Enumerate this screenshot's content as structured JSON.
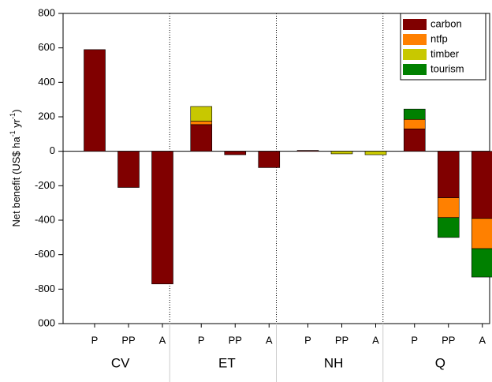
{
  "chart_data": {
    "type": "stacked-bar",
    "ylabel": [
      "Net benefit (US$ ha",
      "-1",
      " yr",
      "-1",
      ")"
    ],
    "categories": [
      "P",
      "PP",
      "A",
      "P",
      "PP",
      "A",
      "P",
      "PP",
      "A",
      "P",
      "PP",
      "A"
    ],
    "groups": [
      "CV",
      "ET",
      "NH",
      "Q"
    ],
    "series": [
      {
        "name": "carbon",
        "color": "#800000",
        "values": [
          590,
          -210,
          -770,
          155,
          -20,
          -95,
          5,
          0,
          0,
          130,
          -270,
          -390
        ]
      },
      {
        "name": "ntfp",
        "color": "#ff8000",
        "values": [
          0,
          0,
          0,
          20,
          0,
          0,
          0,
          0,
          0,
          55,
          -115,
          -175
        ]
      },
      {
        "name": "timber",
        "color": "#c8c800",
        "values": [
          0,
          0,
          0,
          85,
          0,
          0,
          0,
          -15,
          -20,
          0,
          0,
          0
        ]
      },
      {
        "name": "tourism",
        "color": "#008000",
        "values": [
          0,
          0,
          0,
          0,
          0,
          0,
          0,
          0,
          0,
          60,
          -115,
          -165
        ]
      }
    ],
    "ylim": [
      -1000,
      800
    ],
    "yticks": [
      {
        "value": -1000,
        "label": "000"
      },
      -800,
      -600,
      -400,
      -200,
      0,
      200,
      400,
      600,
      800
    ],
    "legend": "upper right"
  }
}
